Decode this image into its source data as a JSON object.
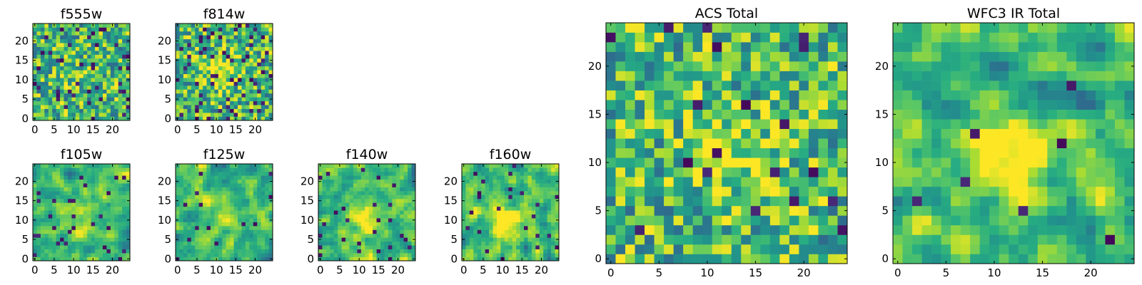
{
  "colors": {
    "low": "#440154",
    "mid": "#21918c",
    "high": "#fde725"
  },
  "chart_data": [
    {
      "type": "heatmap",
      "title": "f555w",
      "x_ticks": [
        "0",
        "5",
        "10",
        "15",
        "20"
      ],
      "y_ticks": [
        "0",
        "5",
        "10",
        "15",
        "20"
      ],
      "grid_size": 25,
      "seed": 11,
      "smooth": 0,
      "blob": [
        10,
        11,
        0.1
      ],
      "dark": 0.08
    },
    {
      "type": "heatmap",
      "title": "f814w",
      "x_ticks": [
        "0",
        "5",
        "10",
        "15",
        "20"
      ],
      "y_ticks": [
        "0",
        "5",
        "10",
        "15",
        "20"
      ],
      "grid_size": 25,
      "seed": 23,
      "smooth": 0,
      "blob": [
        11,
        12,
        0.35
      ],
      "dark": 0.08
    },
    {
      "type": "heatmap",
      "title": "f105w",
      "x_ticks": [
        "0",
        "5",
        "10",
        "15",
        "20"
      ],
      "y_ticks": [
        "0",
        "5",
        "10",
        "15",
        "20"
      ],
      "grid_size": 25,
      "seed": 37,
      "smooth": 1,
      "blob": [
        11,
        9,
        0.25
      ],
      "dark": 0.04
    },
    {
      "type": "heatmap",
      "title": "f125w",
      "x_ticks": [
        "0",
        "5",
        "10",
        "15",
        "20"
      ],
      "y_ticks": [
        "0",
        "5",
        "10",
        "15",
        "20"
      ],
      "grid_size": 25,
      "seed": 41,
      "smooth": 1,
      "blob": [
        13,
        11,
        0.25
      ],
      "dark": 0.03
    },
    {
      "type": "heatmap",
      "title": "f140w",
      "x_ticks": [
        "0",
        "5",
        "10",
        "15",
        "20"
      ],
      "y_ticks": [
        "0",
        "5",
        "10",
        "15",
        "20"
      ],
      "grid_size": 25,
      "seed": 53,
      "smooth": 1,
      "blob": [
        12,
        9,
        0.3
      ],
      "dark": 0.03
    },
    {
      "type": "heatmap",
      "title": "f160w",
      "x_ticks": [
        "0",
        "5",
        "10",
        "15",
        "20"
      ],
      "y_ticks": [
        "0",
        "5",
        "10",
        "15",
        "20"
      ],
      "grid_size": 25,
      "seed": 67,
      "smooth": 1,
      "blob": [
        11,
        9,
        0.3
      ],
      "dark": 0.03
    },
    {
      "type": "heatmap",
      "title": "ACS Total",
      "x_ticks": [
        "0",
        "5",
        "10",
        "15",
        "20"
      ],
      "y_ticks": [
        "0",
        "5",
        "10",
        "15",
        "20"
      ],
      "grid_size": 25,
      "seed": 79,
      "smooth": 0,
      "blob": [
        12,
        11,
        0.3
      ],
      "dark": 0.025
    },
    {
      "type": "heatmap",
      "title": "WFC3 IR Total",
      "x_ticks": [
        "0",
        "5",
        "10",
        "15",
        "20"
      ],
      "y_ticks": [
        "0",
        "5",
        "10",
        "15",
        "20"
      ],
      "grid_size": 25,
      "seed": 97,
      "smooth": 1,
      "blob": [
        12,
        11,
        0.45
      ],
      "dark": 0.01
    }
  ]
}
